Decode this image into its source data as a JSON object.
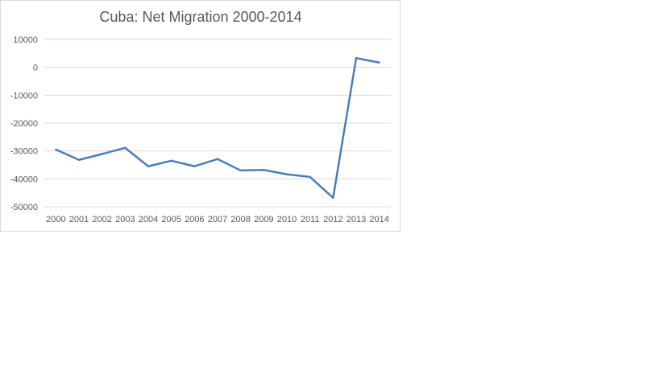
{
  "chart_data": {
    "type": "line",
    "title": "Cuba: Net Migration 2000-2014",
    "categories": [
      "2000",
      "2001",
      "2002",
      "2003",
      "2004",
      "2005",
      "2006",
      "2007",
      "2008",
      "2009",
      "2010",
      "2011",
      "2012",
      "2013",
      "2014"
    ],
    "values": [
      -29500,
      -33200,
      -31100,
      -28900,
      -35500,
      -33500,
      -35500,
      -32900,
      -37000,
      -36800,
      -38400,
      -39300,
      -46800,
      3300,
      1700
    ],
    "ylim": [
      -50000,
      10000
    ],
    "yticks": [
      "10000",
      "0",
      "-10000",
      "-20000",
      "-30000",
      "-40000",
      "-50000"
    ],
    "grid": true,
    "color": "#4a7ebb"
  }
}
